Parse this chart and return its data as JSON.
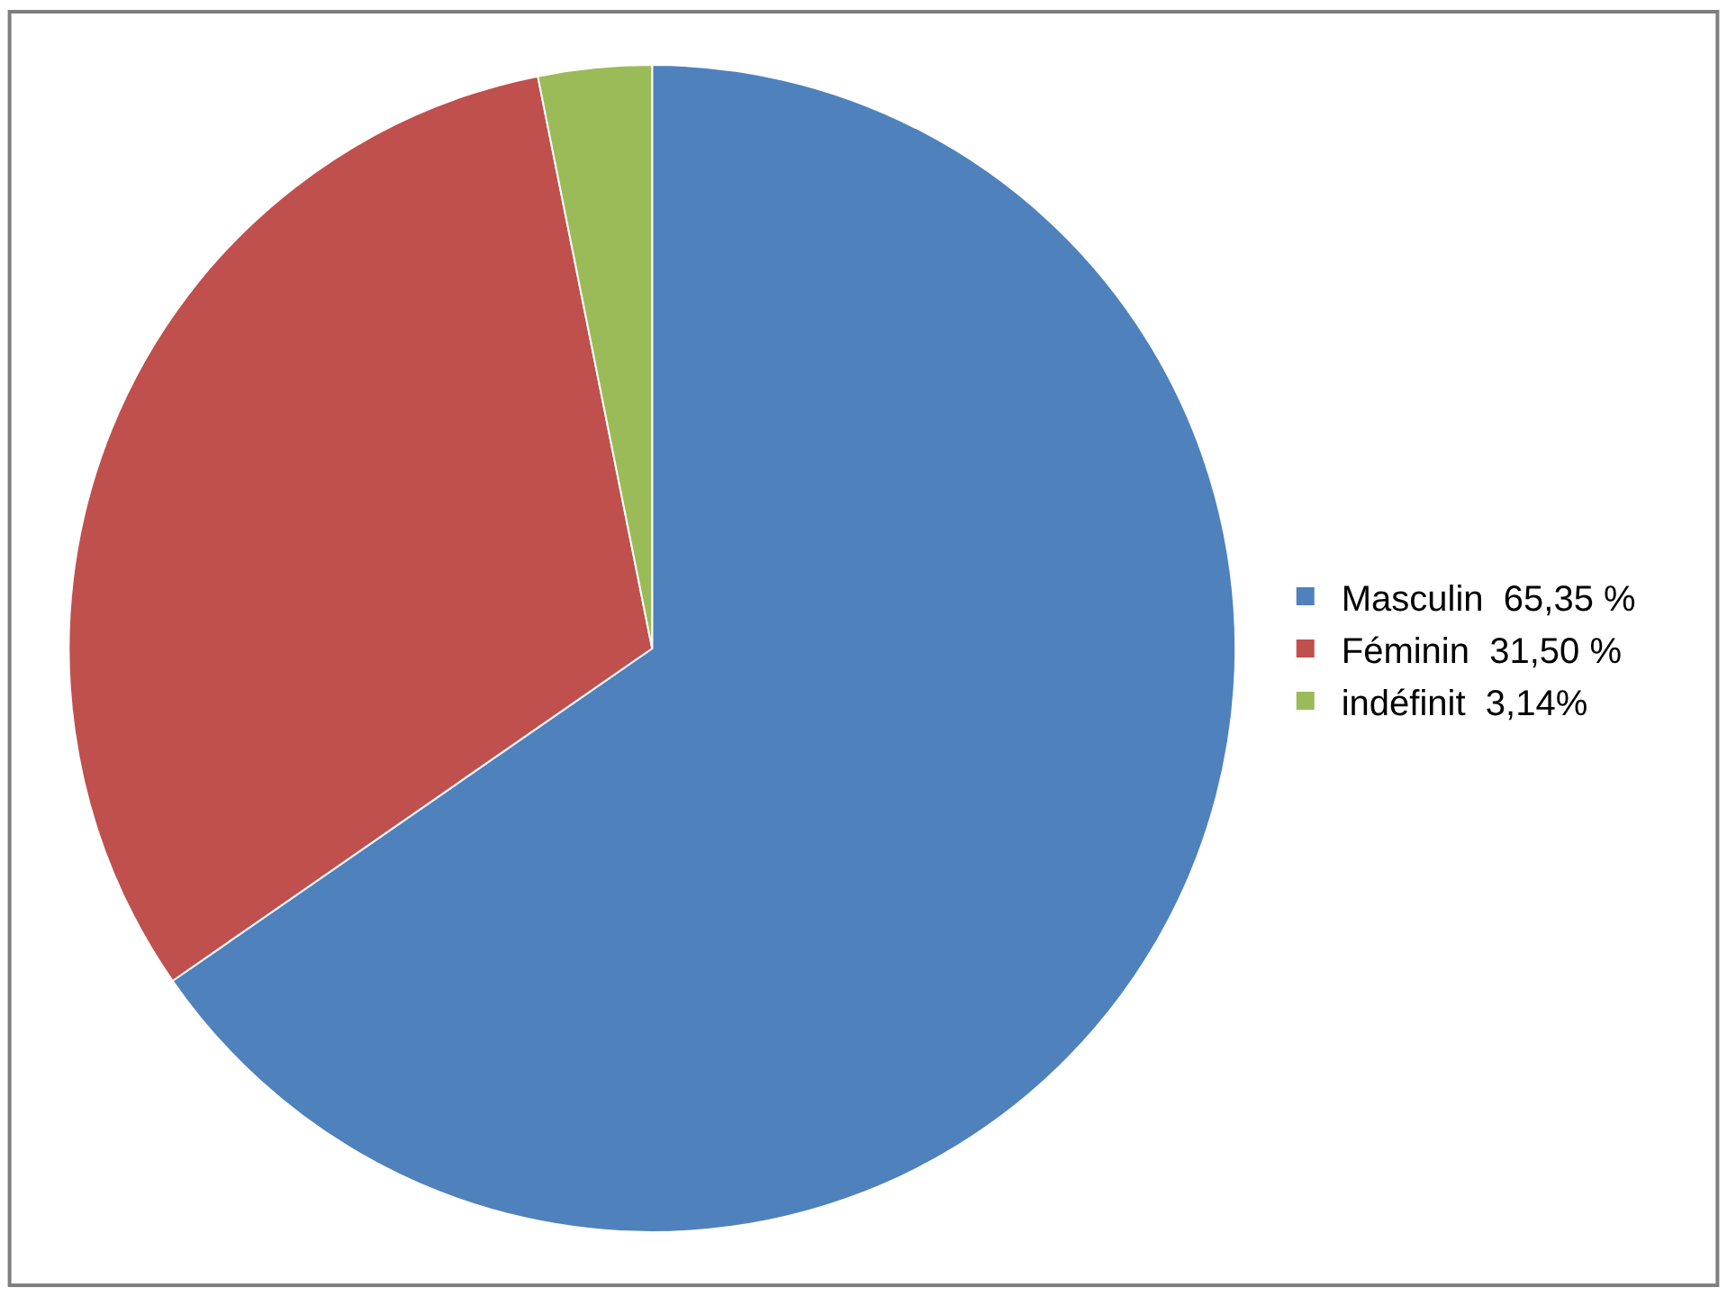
{
  "chart_data": {
    "type": "pie",
    "categories": [
      "Masculin  65,35 %",
      "Féminin  31,50 %",
      "indéfinit  3,14%"
    ],
    "values": [
      65.35,
      31.5,
      3.14
    ],
    "colors": [
      "#4f81bd",
      "#c0504d",
      "#9bbb59"
    ],
    "legend": "right"
  }
}
